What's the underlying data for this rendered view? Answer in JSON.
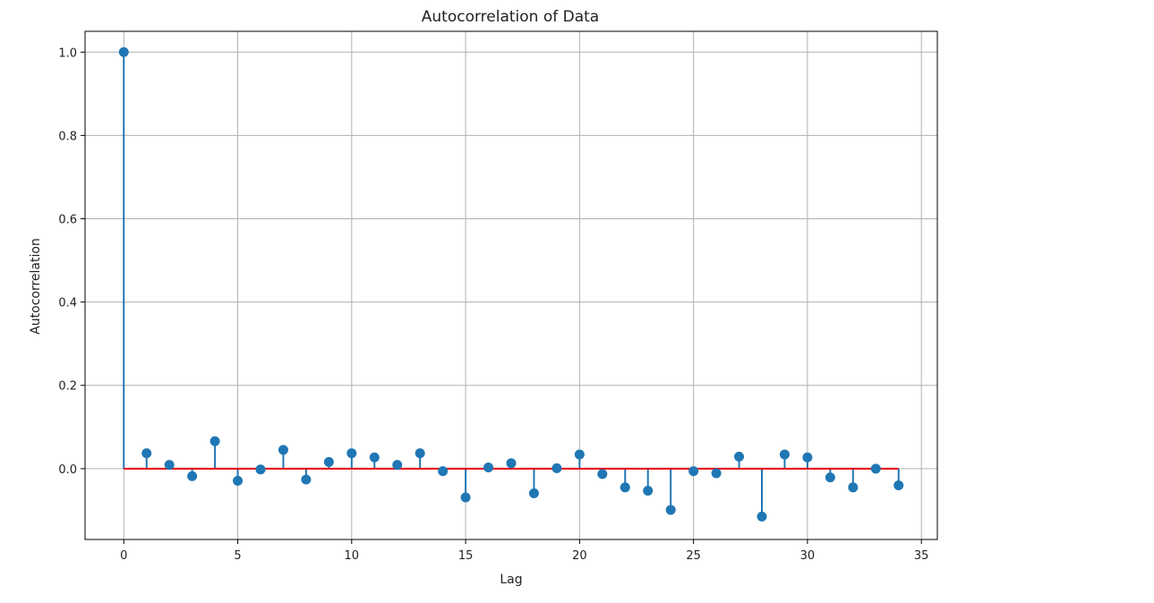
{
  "chart_data": {
    "type": "stem",
    "title": "Autocorrelation of Data",
    "xlabel": "Lag",
    "ylabel": "Autocorrelation",
    "xlim": [
      -1.7,
      35.7
    ],
    "ylim": [
      -0.17,
      1.05
    ],
    "x_ticks": [
      0,
      5,
      10,
      15,
      20,
      25,
      30,
      35
    ],
    "x_tick_labels": [
      "0",
      "5",
      "10",
      "15",
      "20",
      "25",
      "30",
      "35"
    ],
    "y_ticks": [
      0.0,
      0.2,
      0.4,
      0.6,
      0.8,
      1.0
    ],
    "y_tick_labels": [
      "0.0",
      "0.2",
      "0.4",
      "0.6",
      "0.8",
      "1.0"
    ],
    "grid": true,
    "baseline": 0,
    "x": [
      0,
      1,
      2,
      3,
      4,
      5,
      6,
      7,
      8,
      9,
      10,
      11,
      12,
      13,
      14,
      15,
      16,
      17,
      18,
      19,
      20,
      21,
      22,
      23,
      24,
      25,
      26,
      27,
      28,
      29,
      30,
      31,
      32,
      33,
      34
    ],
    "values": [
      1.0,
      0.037,
      0.009,
      -0.018,
      0.066,
      -0.029,
      -0.002,
      0.045,
      -0.026,
      0.016,
      0.037,
      0.027,
      0.009,
      0.037,
      -0.006,
      -0.069,
      0.003,
      0.013,
      -0.059,
      0.001,
      0.034,
      -0.013,
      -0.045,
      -0.053,
      -0.099,
      -0.006,
      -0.011,
      0.029,
      -0.115,
      0.034,
      0.027,
      -0.021,
      -0.045,
      0.0,
      -0.04
    ],
    "colors": {
      "stem": "#1f77b4",
      "marker": "#1f77b4",
      "baseline": "#e8000b",
      "grid": "#b0b0b0",
      "axes": "#000000"
    }
  }
}
